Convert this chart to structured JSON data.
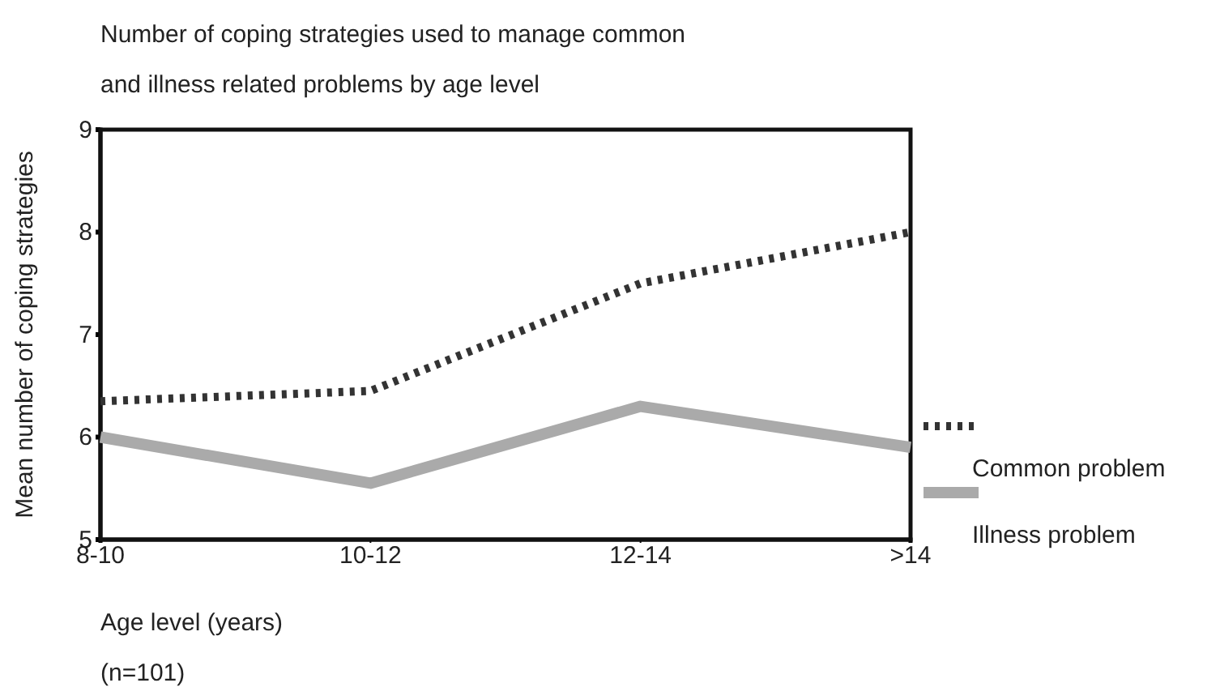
{
  "chart_data": {
    "type": "line",
    "title": "Number of coping strategies used to manage common and illness related problems by age level",
    "xlabel": "Age level (years)",
    "ylabel": "Mean number of coping strategies",
    "annotations": [
      "(n=101)"
    ],
    "categories": [
      "8-10",
      "10-12",
      "12-14",
      ">14"
    ],
    "series": [
      {
        "name": "Common problem",
        "color": "#333333",
        "line_style": "dotted",
        "values": [
          6.35,
          6.45,
          7.5,
          8
        ]
      },
      {
        "name": "Illness problem",
        "color": "#aaaaaa",
        "line_style": "solid",
        "values": [
          6,
          5.55,
          6.3,
          5.9
        ]
      }
    ],
    "ylim": [
      5,
      9
    ],
    "yticks": [
      5,
      6,
      7,
      8,
      9
    ],
    "grid": false,
    "legend": "right",
    "marker": "none"
  }
}
